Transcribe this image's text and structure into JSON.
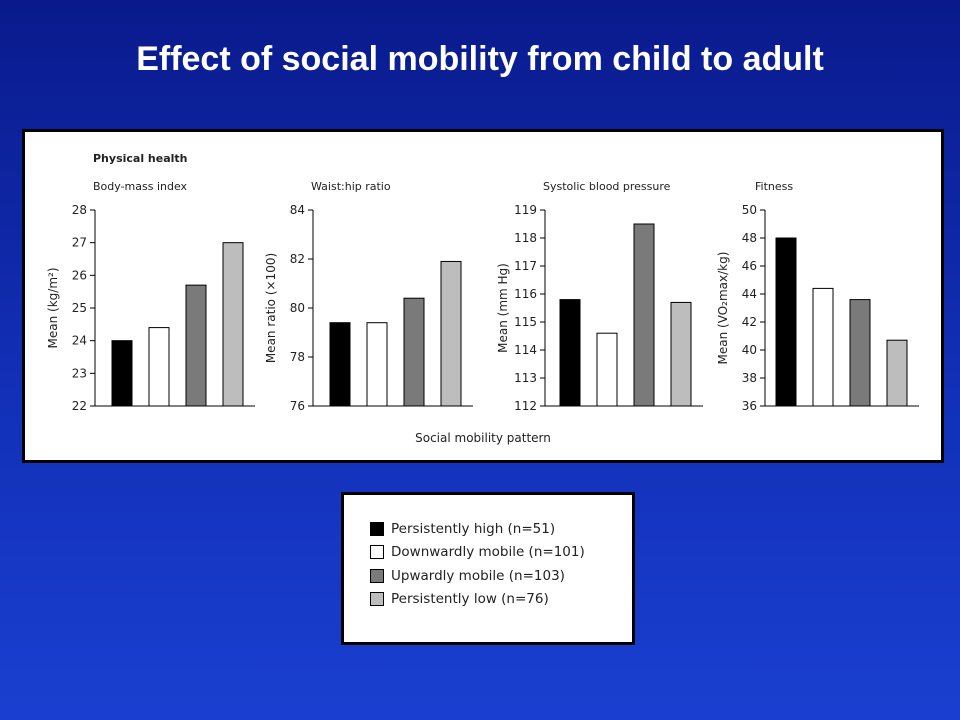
{
  "slide": {
    "title": "Effect of social mobility from child to adult"
  },
  "chart_data": {
    "type": "bar",
    "section_title": "Physical health",
    "xlabel": "Social mobility pattern",
    "categories": [
      "Persistently high",
      "Downwardly mobile",
      "Upwardly mobile",
      "Persistently low"
    ],
    "colors": [
      "#000000",
      "#ffffff",
      "#7a7a7a",
      "#bdbdbd"
    ],
    "panels": [
      {
        "title": "Body-mass index",
        "ylabel": "Mean (kg/m²)",
        "ylim": [
          22,
          28
        ],
        "ticks": [
          "22",
          "23",
          "24",
          "25",
          "26",
          "27",
          "28"
        ],
        "values": [
          24.0,
          24.4,
          25.7,
          27.0
        ]
      },
      {
        "title": "Waist:hip ratio",
        "ylabel": "Mean ratio (×100)",
        "ylim": [
          76,
          84
        ],
        "ticks": [
          "76",
          "78",
          "80",
          "82",
          "84"
        ],
        "values": [
          79.4,
          79.4,
          80.4,
          81.9
        ]
      },
      {
        "title": "Systolic blood pressure",
        "ylabel": "Mean (mm Hg)",
        "ylim": [
          112,
          119
        ],
        "ticks": [
          "112",
          "113",
          "114",
          "115",
          "116",
          "117",
          "118",
          "119"
        ],
        "values": [
          115.8,
          114.6,
          118.5,
          115.7
        ]
      },
      {
        "title": "Fitness",
        "ylabel": "Mean (VO₂max/kg)",
        "ylim": [
          36,
          50
        ],
        "ticks": [
          "36",
          "38",
          "40",
          "42",
          "44",
          "46",
          "48",
          "50"
        ],
        "values": [
          48.0,
          44.4,
          43.6,
          40.7
        ]
      }
    ],
    "legend": [
      "Persistently high (n=51)",
      "Downwardly mobile (n=101)",
      "Upwardly mobile (n=103)",
      "Persistently low (n=76)"
    ],
    "legend_placement": "bottom-center"
  }
}
